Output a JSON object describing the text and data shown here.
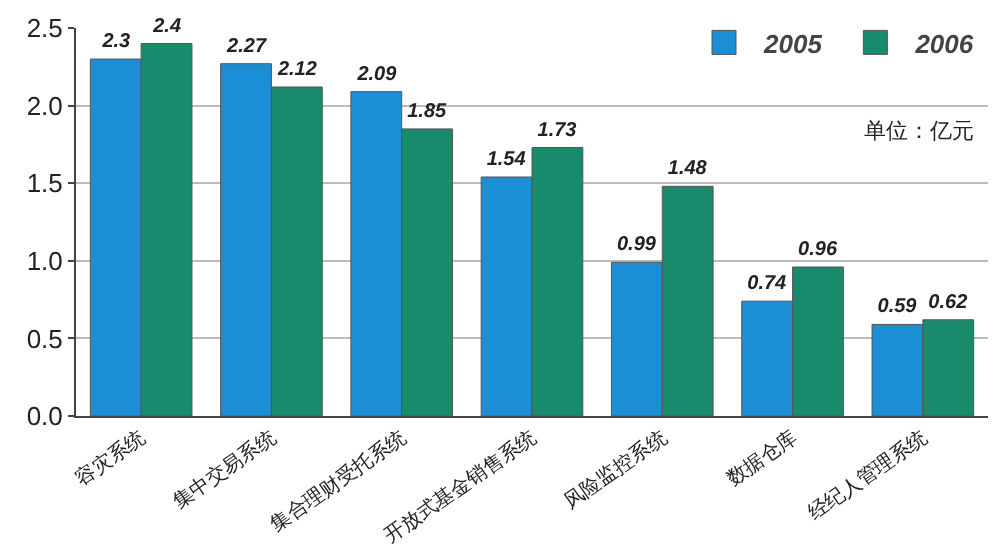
{
  "chart_data": {
    "type": "bar",
    "categories": [
      "容灾系统",
      "集中交易系统",
      "集合理财受托系统",
      "开放式基金销售系统",
      "风险监控系统",
      "数据仓库",
      "经纪人管理系统"
    ],
    "series": [
      {
        "name": "2005",
        "color": "#1c8ed6",
        "values": [
          2.3,
          2.27,
          2.09,
          1.54,
          0.99,
          0.74,
          0.59
        ]
      },
      {
        "name": "2006",
        "color": "#1a8a6c",
        "values": [
          2.4,
          2.12,
          1.85,
          1.73,
          1.48,
          0.96,
          0.62
        ]
      }
    ],
    "ylim": [
      0,
      2.5
    ],
    "yticks": [
      {
        "value": 0,
        "label": "0.0"
      },
      {
        "value": 0.5,
        "label": "0.5"
      },
      {
        "value": 1,
        "label": "1.0"
      },
      {
        "value": 1.5,
        "label": "1.5"
      },
      {
        "value": 2,
        "label": "2.0"
      },
      {
        "value": 2.5,
        "label": "2.5"
      }
    ],
    "grid": "y",
    "legend": "top right",
    "data_labels": true,
    "annotations": [
      "单位：亿元"
    ]
  }
}
